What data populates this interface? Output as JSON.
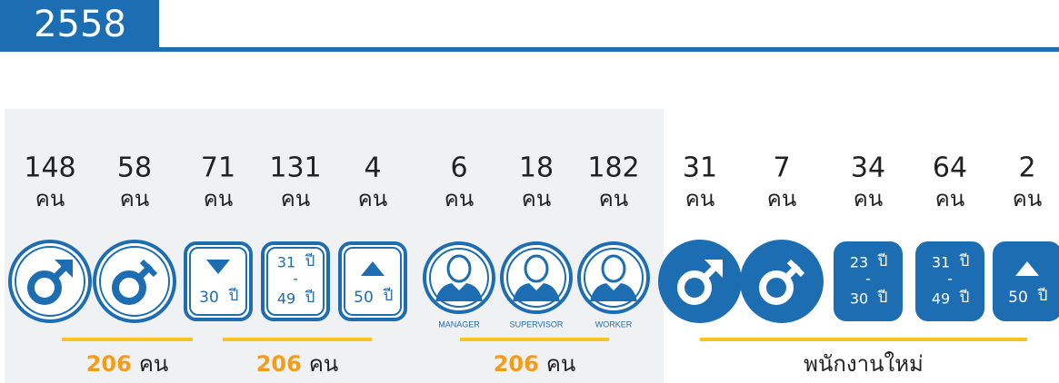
{
  "year": "2558",
  "groups": [
    {
      "items": [
        {
          "value": 148,
          "unit": "คน"
        },
        {
          "value": 58,
          "unit": "คน"
        }
      ],
      "total": {
        "value": 206,
        "unit": "คน"
      }
    },
    {
      "items": [
        {
          "value": 71,
          "unit": "คน",
          "label": [
            "30",
            "ปี"
          ]
        },
        {
          "value": 131,
          "unit": "คน",
          "label": [
            "31",
            "ปี",
            "-",
            "49",
            "ปี"
          ]
        },
        {
          "value": 4,
          "unit": "คน",
          "label": [
            "50",
            "ปี"
          ]
        }
      ],
      "total": {
        "value": 206,
        "unit": "คน"
      }
    },
    {
      "items": [
        {
          "value": 6,
          "unit": "คน",
          "label": [
            "MANAGER"
          ]
        },
        {
          "value": 18,
          "unit": "คน",
          "label": [
            "SUPERVISOR"
          ]
        },
        {
          "value": 182,
          "unit": "คน",
          "label": [
            "WORKER"
          ]
        }
      ],
      "total": {
        "value": 206,
        "unit": "คน"
      }
    },
    {
      "items": [
        {
          "value": 31,
          "unit": "คน"
        },
        {
          "value": 7,
          "unit": "คน"
        },
        {
          "value": 34,
          "unit": "คน",
          "label": [
            "23",
            "ปี",
            "-",
            "30",
            "ปี"
          ]
        },
        {
          "value": 64,
          "unit": "คน",
          "label": [
            "31",
            "ปี",
            "-",
            "49",
            "ปี"
          ]
        },
        {
          "value": 2,
          "unit": "คน",
          "label": [
            "50",
            "ปี"
          ]
        }
      ],
      "caption": "พนักงานใหม่"
    }
  ]
}
